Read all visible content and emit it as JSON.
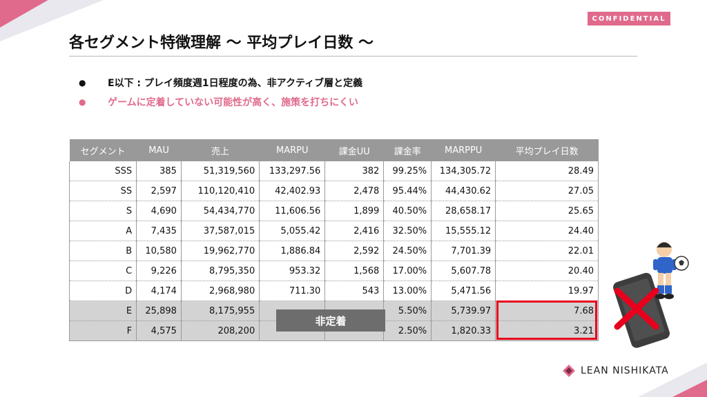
{
  "badge": "CONFIDENTIAL",
  "title": "各セグメント特徴理解 〜 平均プレイ日数 〜",
  "bullets": [
    {
      "text": "E以下 : プレイ頻度週1日程度の為、非アクティブ層と定義"
    },
    {
      "text": "ゲームに定着していない可能性が高く、施策を打ちにくい"
    }
  ],
  "table": {
    "headers": [
      "セグメント",
      "MAU",
      "売上",
      "MARPU",
      "課金UU",
      "課金率",
      "MARPPU",
      "平均プレイ日数"
    ],
    "rows": [
      [
        "SSS",
        "385",
        "51,319,560",
        "133,297.56",
        "382",
        "99.25%",
        "134,305.72",
        "28.49"
      ],
      [
        "SS",
        "2,597",
        "110,120,410",
        "42,402.93",
        "2,478",
        "95.44%",
        "44,430.62",
        "27.05"
      ],
      [
        "S",
        "4,690",
        "54,434,770",
        "11,606.56",
        "1,899",
        "40.50%",
        "28,658.17",
        "25.65"
      ],
      [
        "A",
        "7,435",
        "37,587,015",
        "5,055.42",
        "2,416",
        "32.50%",
        "15,555.12",
        "24.40"
      ],
      [
        "B",
        "10,580",
        "19,962,770",
        "1,886.84",
        "2,592",
        "24.50%",
        "7,701.39",
        "22.01"
      ],
      [
        "C",
        "9,226",
        "8,795,350",
        "953.32",
        "1,568",
        "17.00%",
        "5,607.78",
        "20.40"
      ],
      [
        "D",
        "4,174",
        "2,968,980",
        "711.30",
        "543",
        "13.00%",
        "5,471.56",
        "19.97"
      ],
      [
        "E",
        "25,898",
        "8,175,955",
        "",
        "",
        "5.50%",
        "5,739.97",
        "7.68"
      ],
      [
        "F",
        "4,575",
        "208,200",
        "",
        "",
        "2.50%",
        "1,820.33",
        "3.21"
      ]
    ]
  },
  "overlay_label": "非定着",
  "logo_text": "LEAN NISHIKATA",
  "colors": {
    "accent_pink": "#e06a8c",
    "highlight_red": "#e8001c",
    "header_gray": "#999999"
  }
}
